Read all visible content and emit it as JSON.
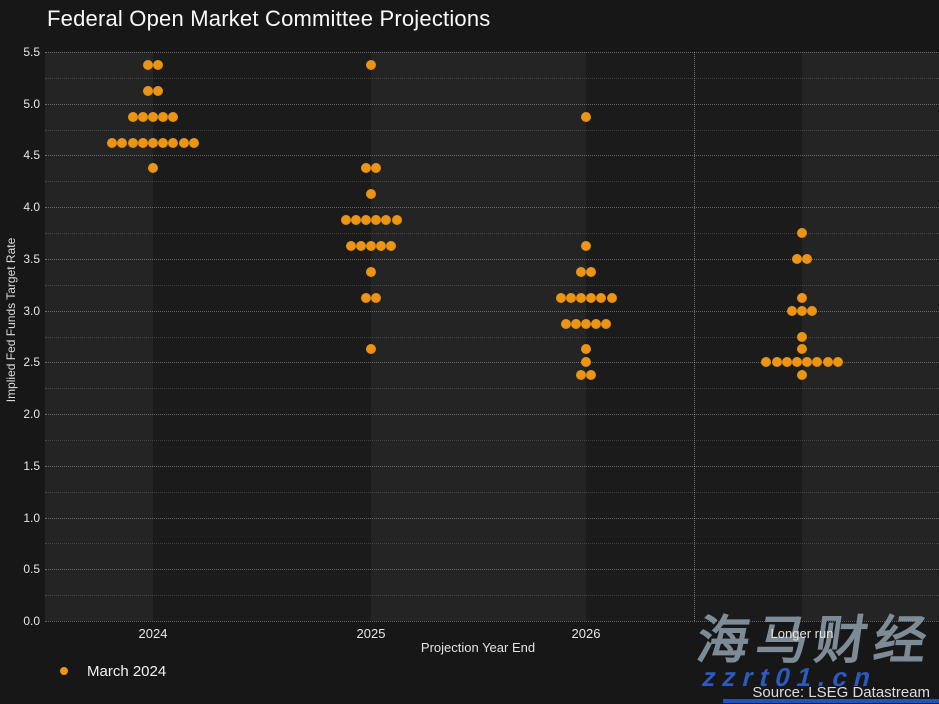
{
  "title": "Federal Open Market Committee Projections",
  "legend": {
    "label": "March 2024"
  },
  "source": "Source: LSEG Datastream",
  "watermarks": {
    "chinese": "海马财经",
    "site": "zzrt01.cn"
  },
  "colors": {
    "dot": "#EC9413",
    "background": "#171717",
    "band_light": "#242424",
    "band_dark": "#1B1B1B",
    "watermark_gray_blue": "#8696A2",
    "watermark_blue": "#2D5FC8"
  },
  "chart_data": {
    "type": "scatter",
    "title": "Federal Open Market Committee Projections",
    "xlabel": "Projection Year End",
    "ylabel": "Implied Fed Funds Target Rate",
    "ylim": [
      0.0,
      5.5
    ],
    "ytick_step": 0.5,
    "grid_step": 0.25,
    "grid": "dotted",
    "legend_position": "bottom-left",
    "categories": [
      "2024",
      "2025",
      "2026",
      "Longer run"
    ],
    "series_name": "March 2024",
    "series": [
      {
        "category": "2024",
        "dots": [
          {
            "rate": 5.375,
            "count": 2
          },
          {
            "rate": 5.125,
            "count": 2
          },
          {
            "rate": 4.875,
            "count": 5
          },
          {
            "rate": 4.625,
            "count": 9
          },
          {
            "rate": 4.375,
            "count": 1
          }
        ]
      },
      {
        "category": "2025",
        "dots": [
          {
            "rate": 5.375,
            "count": 1
          },
          {
            "rate": 4.375,
            "count": 2
          },
          {
            "rate": 4.125,
            "count": 1
          },
          {
            "rate": 3.875,
            "count": 6
          },
          {
            "rate": 3.625,
            "count": 5
          },
          {
            "rate": 3.375,
            "count": 1
          },
          {
            "rate": 3.125,
            "count": 2
          },
          {
            "rate": 2.625,
            "count": 1
          }
        ]
      },
      {
        "category": "2026",
        "dots": [
          {
            "rate": 4.875,
            "count": 1
          },
          {
            "rate": 3.625,
            "count": 1
          },
          {
            "rate": 3.375,
            "count": 2
          },
          {
            "rate": 3.125,
            "count": 6
          },
          {
            "rate": 2.875,
            "count": 5
          },
          {
            "rate": 2.625,
            "count": 1
          },
          {
            "rate": 2.5,
            "count": 1
          },
          {
            "rate": 2.375,
            "count": 2
          }
        ]
      },
      {
        "category": "Longer run",
        "dots": [
          {
            "rate": 3.75,
            "count": 1
          },
          {
            "rate": 3.5,
            "count": 2
          },
          {
            "rate": 3.125,
            "count": 1
          },
          {
            "rate": 3.0,
            "count": 3
          },
          {
            "rate": 2.75,
            "count": 1
          },
          {
            "rate": 2.625,
            "count": 1
          },
          {
            "rate": 2.5,
            "count": 8
          },
          {
            "rate": 2.375,
            "count": 1
          }
        ]
      }
    ]
  }
}
